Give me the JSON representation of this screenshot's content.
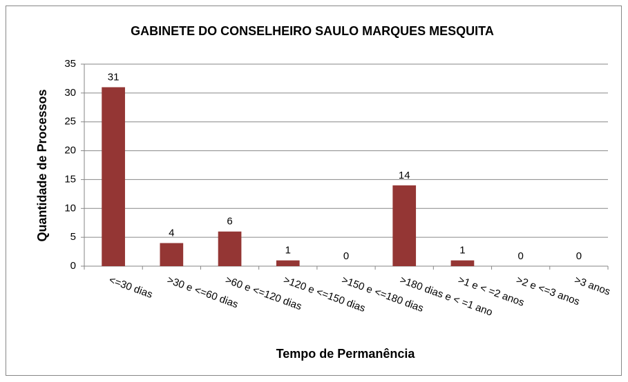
{
  "chart_data": {
    "type": "bar",
    "title": "GABINETE DO CONSELHEIRO SAULO MARQUES MESQUITA",
    "x_label": "Tempo de Permanência",
    "y_label": "Quantidade de Processos",
    "categories": [
      "<=30 dias",
      ">30 e <=60 dias",
      ">60 e <=120 dias",
      ">120 e <=150 dias",
      ">150 e <=180 dias",
      ">180 dias e < =1 ano",
      ">1 e < =2 anos",
      ">2 e <=3 anos",
      ">3 anos"
    ],
    "values": [
      31,
      4,
      6,
      1,
      0,
      14,
      1,
      0,
      0
    ],
    "color": "#943634",
    "ylim": [
      0,
      35
    ],
    "yticks": [
      0,
      5,
      10,
      15,
      20,
      25,
      30,
      35
    ],
    "grid": true
  }
}
